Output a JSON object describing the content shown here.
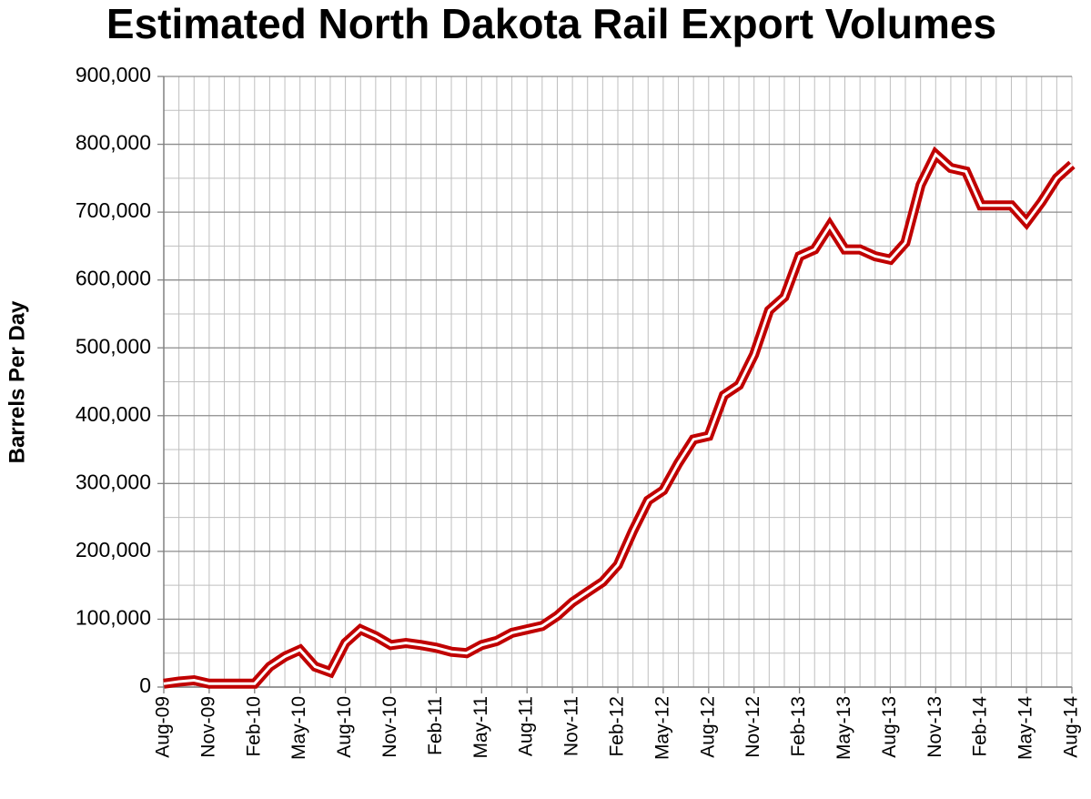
{
  "chart_data": {
    "type": "line",
    "title": "Estimated North Dakota Rail Export Volumes",
    "y_label": "Barrels Per Day",
    "categories": [
      "Aug-09",
      null,
      null,
      "Nov-09",
      null,
      null,
      "Feb-10",
      null,
      null,
      "May-10",
      null,
      null,
      "Aug-10",
      null,
      null,
      "Nov-10",
      null,
      null,
      "Feb-11",
      null,
      null,
      "May-11",
      null,
      null,
      "Aug-11",
      null,
      null,
      "Nov-11",
      null,
      null,
      "Feb-12",
      null,
      null,
      "May-12",
      null,
      null,
      "Aug-12",
      null,
      null,
      "Nov-12",
      null,
      null,
      "Feb-13",
      null,
      null,
      "May-13",
      null,
      null,
      "Aug-13",
      null,
      null,
      "Nov-13",
      null,
      null,
      "Feb-14",
      null,
      null,
      "May-14",
      null,
      null,
      "Aug-14"
    ],
    "series": [
      {
        "color": "#c00000",
        "values": [
          5000,
          8000,
          10000,
          5000,
          5000,
          5000,
          5000,
          30000,
          45000,
          55000,
          30000,
          22000,
          65000,
          85000,
          75000,
          62000,
          65000,
          62000,
          58000,
          52000,
          50000,
          62000,
          68000,
          80000,
          85000,
          90000,
          105000,
          125000,
          140000,
          155000,
          180000,
          230000,
          275000,
          290000,
          330000,
          365000,
          370000,
          430000,
          445000,
          490000,
          555000,
          575000,
          635000,
          645000,
          680000,
          645000,
          645000,
          635000,
          630000,
          655000,
          740000,
          785000,
          765000,
          760000,
          710000,
          710000,
          710000,
          685000,
          715000,
          750000,
          770000
        ]
      }
    ],
    "ylim": [
      0,
      900000
    ],
    "yticks": [
      0,
      {
        "value": 100000,
        "label": "100,000"
      },
      {
        "value": 200000,
        "label": "200,000"
      },
      {
        "value": 300000,
        "label": "300,000"
      },
      {
        "value": 400000,
        "label": "400,000"
      },
      {
        "value": 500000,
        "label": "500,000"
      },
      {
        "value": 600000,
        "label": "600,000"
      },
      {
        "value": 700000,
        "label": "700,000"
      },
      {
        "value": 800000,
        "label": "800,000"
      },
      {
        "value": 900000,
        "label": "900,000"
      }
    ],
    "grid": true,
    "minor_grid": true
  }
}
